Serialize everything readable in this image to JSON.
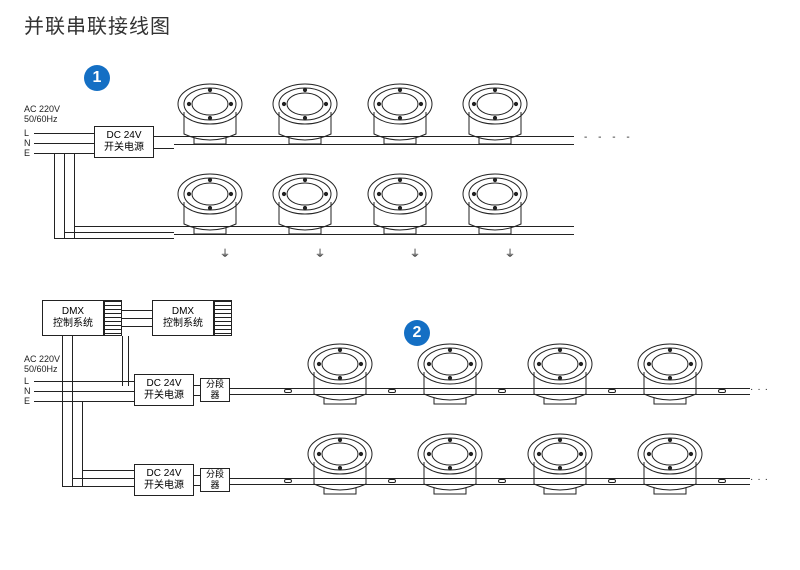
{
  "title": "并联串联接线图",
  "colors": {
    "badge_bg": "#146fc4",
    "line": "#222222",
    "bg": "#ffffff"
  },
  "diagram1": {
    "badge": "1",
    "ac_label": "AC 220V\n50/60Hz",
    "lne": [
      "L",
      "N",
      "E"
    ],
    "psu": {
      "l1": "DC 24V",
      "l2": "开关电源"
    },
    "light_rows": 2,
    "lights_per_row": 4,
    "has_continuation_dots": true
  },
  "diagram2": {
    "badge": "2",
    "ac_label": "AC 220V\n50/60Hz",
    "lne": [
      "L",
      "N",
      "E"
    ],
    "dmx": {
      "l1": "DMX",
      "l2": "控制系统"
    },
    "dmx2": {
      "l1": "DMX",
      "l2": "控制系统"
    },
    "psu": {
      "l1": "DC 24V",
      "l2": "开关电源"
    },
    "splitter": "分段器",
    "light_rows": 2,
    "lights_per_row": 4,
    "has_continuation_dots": true
  }
}
